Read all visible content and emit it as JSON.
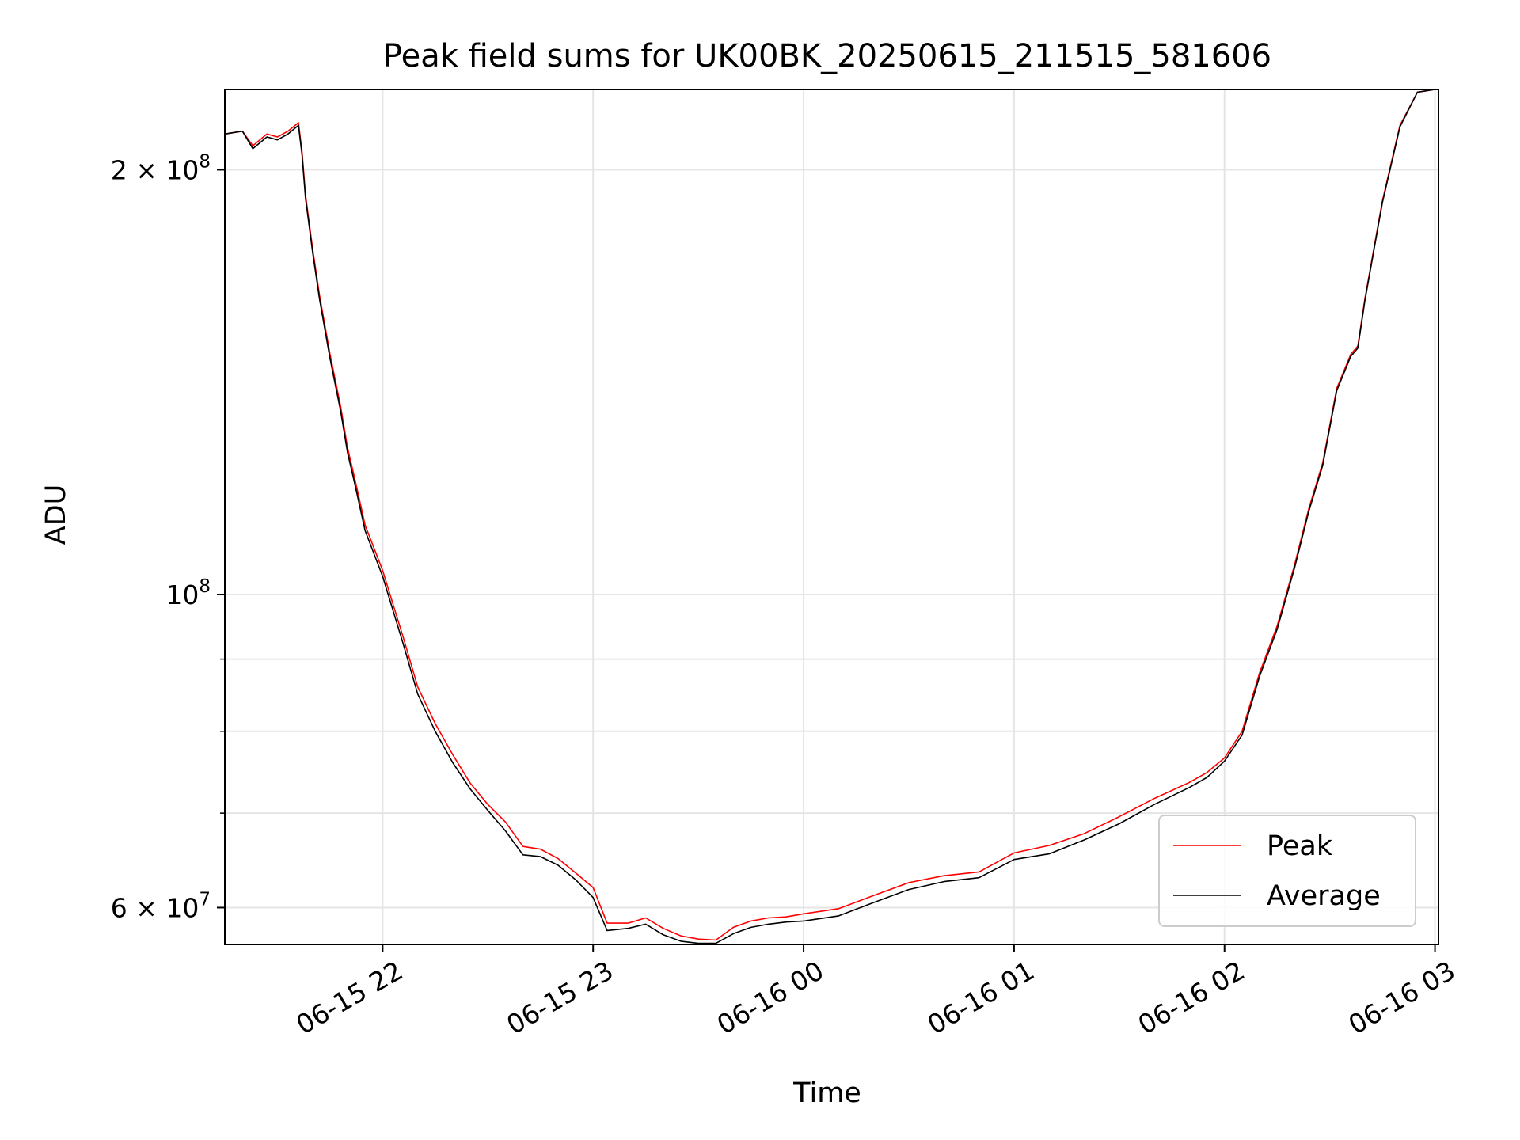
{
  "chart_data": {
    "type": "line",
    "title": "Peak field sums for UK00BK_20250615_211515_581606",
    "xlabel": "Time",
    "ylabel": "ADU",
    "yscale": "log",
    "xlim": [
      "2025-06-15 21:15",
      "2025-06-16 03:01"
    ],
    "ylim": [
      56500000,
      228000000
    ],
    "grid": true,
    "legend": "lower-right",
    "x_ticks": [
      {
        "label": "06-15 22",
        "value": "2025-06-15 22:00"
      },
      {
        "label": "06-15 23",
        "value": "2025-06-15 23:00"
      },
      {
        "label": "06-16 00",
        "value": "2025-06-16 00:00"
      },
      {
        "label": "06-16 01",
        "value": "2025-06-16 01:00"
      },
      {
        "label": "06-16 02",
        "value": "2025-06-16 02:00"
      },
      {
        "label": "06-16 03",
        "value": "2025-06-16 03:00"
      }
    ],
    "y_ticks": [
      {
        "value": 60000000,
        "label_base": "6 × 10",
        "label_exp": "7"
      },
      {
        "value": 100000000,
        "label_base": "10",
        "label_exp": "8"
      },
      {
        "value": 200000000,
        "label_base": "2 × 10",
        "label_exp": "8"
      }
    ],
    "y_minor_ticks": [
      70000000,
      80000000,
      90000000
    ],
    "x": [
      "2025-06-15 21:15",
      "2025-06-15 21:20",
      "2025-06-15 21:23",
      "2025-06-15 21:27",
      "2025-06-15 21:30",
      "2025-06-15 21:33",
      "2025-06-15 21:36",
      "2025-06-15 21:37",
      "2025-06-15 21:38",
      "2025-06-15 21:40",
      "2025-06-15 21:42",
      "2025-06-15 21:45",
      "2025-06-15 21:48",
      "2025-06-15 21:50",
      "2025-06-15 21:52",
      "2025-06-15 21:55",
      "2025-06-15 22:00",
      "2025-06-15 22:06",
      "2025-06-15 22:10",
      "2025-06-15 22:15",
      "2025-06-15 22:20",
      "2025-06-15 22:25",
      "2025-06-15 22:30",
      "2025-06-15 22:35",
      "2025-06-15 22:40",
      "2025-06-15 22:45",
      "2025-06-15 22:50",
      "2025-06-15 22:55",
      "2025-06-15 23:00",
      "2025-06-15 23:04",
      "2025-06-15 23:10",
      "2025-06-15 23:15",
      "2025-06-15 23:20",
      "2025-06-15 23:25",
      "2025-06-15 23:30",
      "2025-06-15 23:35",
      "2025-06-15 23:40",
      "2025-06-15 23:45",
      "2025-06-15 23:50",
      "2025-06-15 23:55",
      "2025-06-16 00:00",
      "2025-06-16 00:10",
      "2025-06-16 00:20",
      "2025-06-16 00:30",
      "2025-06-16 00:40",
      "2025-06-16 00:50",
      "2025-06-16 01:00",
      "2025-06-16 01:10",
      "2025-06-16 01:20",
      "2025-06-16 01:30",
      "2025-06-16 01:40",
      "2025-06-16 01:50",
      "2025-06-16 01:55",
      "2025-06-16 02:00",
      "2025-06-16 02:05",
      "2025-06-16 02:10",
      "2025-06-16 02:15",
      "2025-06-16 02:20",
      "2025-06-16 02:24",
      "2025-06-16 02:28",
      "2025-06-16 02:32",
      "2025-06-16 02:36",
      "2025-06-16 02:38",
      "2025-06-16 02:40",
      "2025-06-16 02:45",
      "2025-06-16 02:50",
      "2025-06-16 02:55",
      "2025-06-16 03:00"
    ],
    "series": [
      {
        "name": "Peak",
        "color": "#ff0000",
        "values": [
          212000000,
          213000000,
          208000000,
          212000000,
          211000000,
          213000000,
          216000000,
          206000000,
          192000000,
          176000000,
          163000000,
          148000000,
          136000000,
          127000000,
          121000000,
          112000000,
          104000000,
          93000000,
          86000000,
          81000000,
          77000000,
          73500000,
          71000000,
          69000000,
          66300000,
          66000000,
          65000000,
          63500000,
          62000000,
          58500000,
          58500000,
          59000000,
          58000000,
          57300000,
          57000000,
          56900000,
          58100000,
          58700000,
          59000000,
          59100000,
          59400000,
          59900000,
          61200000,
          62500000,
          63200000,
          63600000,
          65600000,
          66400000,
          67700000,
          69600000,
          71700000,
          73600000,
          74800000,
          76600000,
          80000000,
          88000000,
          95000000,
          105000000,
          115000000,
          124000000,
          140000000,
          148000000,
          150000000,
          162000000,
          190000000,
          215000000,
          227000000,
          228000000
        ]
      },
      {
        "name": "Average",
        "color": "#000000",
        "values": [
          212000000,
          213000000,
          207000000,
          211000000,
          210000000,
          212000000,
          215000000,
          205000000,
          191000000,
          175000000,
          162000000,
          147000000,
          135000000,
          126000000,
          120000000,
          111000000,
          103000000,
          92000000,
          85000000,
          80000000,
          76000000,
          72800000,
          70300000,
          68000000,
          65400000,
          65200000,
          64300000,
          62800000,
          61000000,
          57800000,
          58000000,
          58400000,
          57400000,
          56800000,
          56600000,
          56600000,
          57500000,
          58100000,
          58400000,
          58600000,
          58700000,
          59200000,
          60500000,
          61800000,
          62600000,
          63000000,
          64900000,
          65500000,
          67000000,
          68800000,
          71000000,
          73000000,
          74200000,
          76200000,
          79500000,
          87500000,
          94500000,
          104500000,
          114500000,
          123500000,
          139500000,
          147500000,
          149500000,
          161500000,
          189500000,
          214500000,
          227000000,
          228000000
        ]
      }
    ]
  }
}
